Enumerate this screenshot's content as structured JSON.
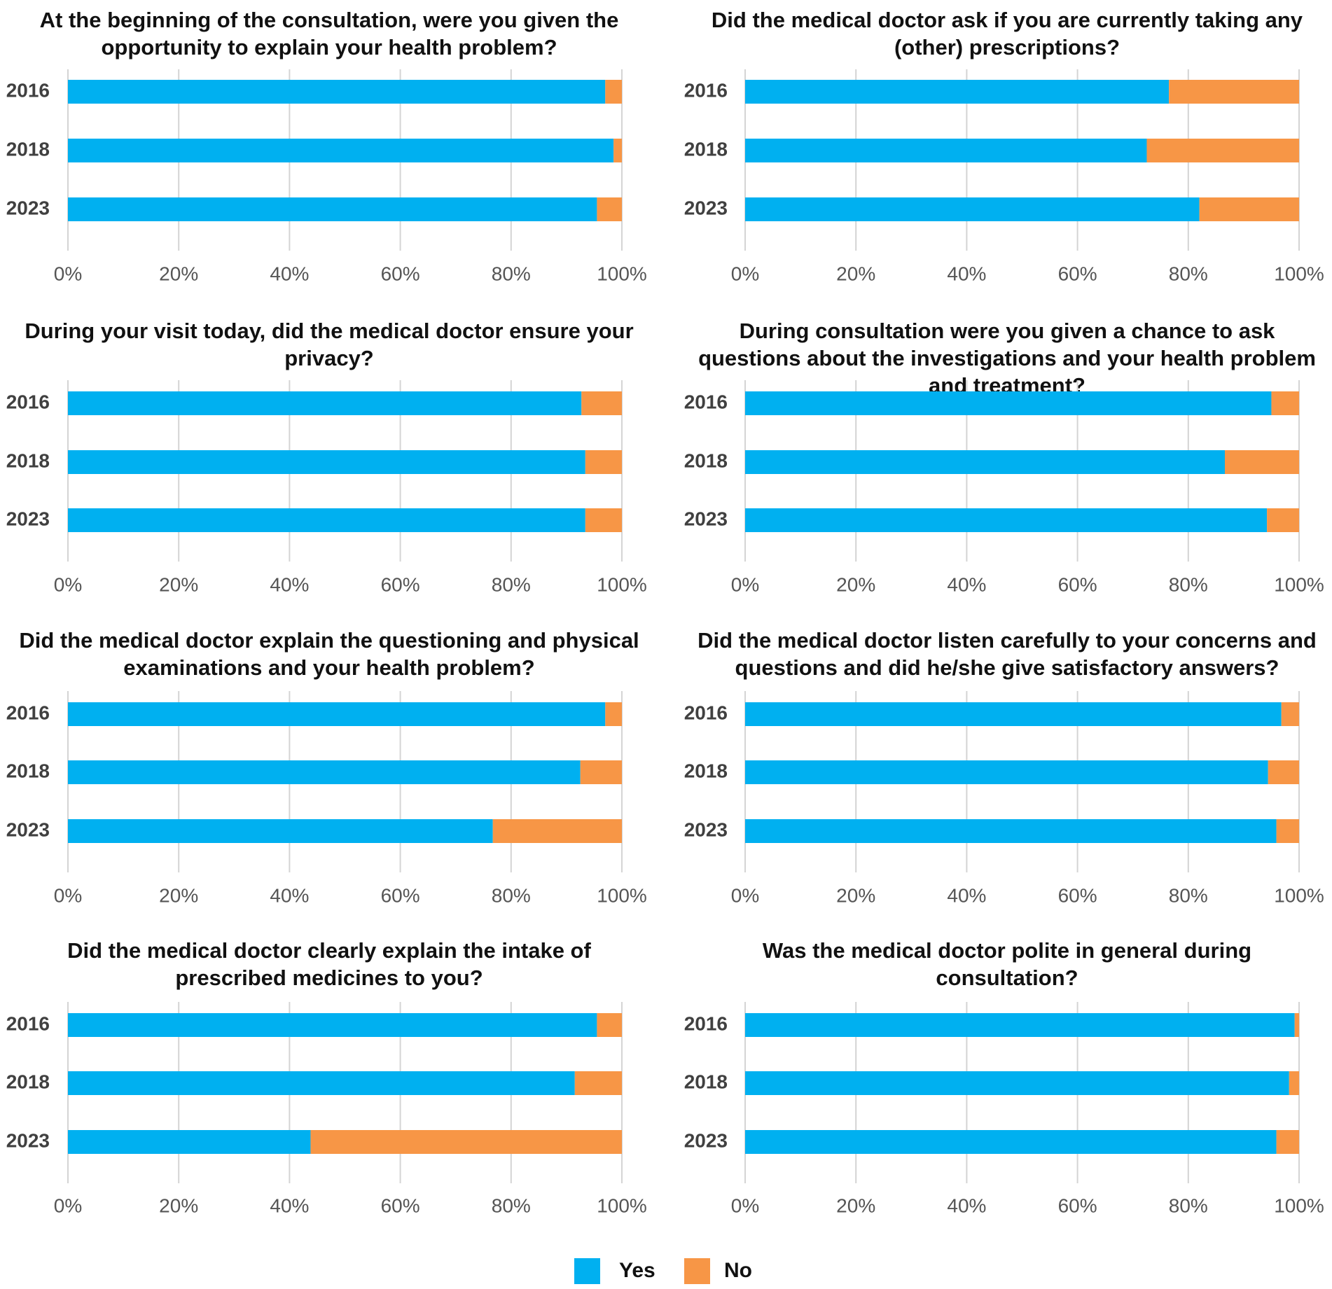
{
  "colors": {
    "yes": "#00b0f0",
    "no": "#f79646"
  },
  "legend": [
    {
      "key": "yes",
      "label": "Yes"
    },
    {
      "key": "no",
      "label": "No"
    }
  ],
  "chart_data": [
    {
      "type": "bar",
      "orientation": "horizontal",
      "stacked": true,
      "title_lines": [
        "At the beginning of the consultation, were you given the",
        "opportunity to explain your health problem?"
      ],
      "categories": [
        "2016",
        "2018",
        "2023"
      ],
      "series": [
        {
          "name": "Yes",
          "values": [
            97,
            98.5,
            95.5
          ]
        },
        {
          "name": "No",
          "values": [
            3,
            1.5,
            4.5
          ]
        }
      ],
      "x_ticks": [
        "0%",
        "20%",
        "40%",
        "60%",
        "80%",
        "100%"
      ],
      "xlim": [
        0,
        100
      ]
    },
    {
      "type": "bar",
      "orientation": "horizontal",
      "stacked": true,
      "title_lines": [
        "Did the medical doctor ask if you are currently taking any",
        "(other) prescriptions?"
      ],
      "categories": [
        "2016",
        "2018",
        "2023"
      ],
      "series": [
        {
          "name": "Yes",
          "values": [
            76.5,
            72.5,
            82
          ]
        },
        {
          "name": "No",
          "values": [
            23.5,
            27.5,
            18
          ]
        }
      ],
      "x_ticks": [
        "0%",
        "20%",
        "40%",
        "60%",
        "80%",
        "100%"
      ],
      "xlim": [
        0,
        100
      ]
    },
    {
      "type": "bar",
      "orientation": "horizontal",
      "stacked": true,
      "title_lines": [
        "During your visit today, did the medical doctor ensure your",
        "privacy?"
      ],
      "categories": [
        "2016",
        "2018",
        "2023"
      ],
      "series": [
        {
          "name": "Yes",
          "values": [
            92.7,
            93.4,
            93.4
          ]
        },
        {
          "name": "No",
          "values": [
            7.3,
            6.6,
            6.6
          ]
        }
      ],
      "x_ticks": [
        "0%",
        "20%",
        "40%",
        "60%",
        "80%",
        "100%"
      ],
      "xlim": [
        0,
        100
      ]
    },
    {
      "type": "bar",
      "orientation": "horizontal",
      "stacked": true,
      "title_lines": [
        "During consultation were you given a chance to ask",
        "questions about the investigations and your health problem",
        "and treatment?"
      ],
      "categories": [
        "2016",
        "2018",
        "2023"
      ],
      "series": [
        {
          "name": "Yes",
          "values": [
            95,
            86.6,
            94.2
          ]
        },
        {
          "name": "No",
          "values": [
            5,
            13.4,
            5.8
          ]
        }
      ],
      "x_ticks": [
        "0%",
        "20%",
        "40%",
        "60%",
        "80%",
        "100%"
      ],
      "xlim": [
        0,
        100
      ]
    },
    {
      "type": "bar",
      "orientation": "horizontal",
      "stacked": true,
      "title_lines": [
        "Did the medical doctor explain the questioning and physical",
        "examinations and your health problem?"
      ],
      "categories": [
        "2016",
        "2018",
        "2023"
      ],
      "series": [
        {
          "name": "Yes",
          "values": [
            97,
            92.5,
            76.7
          ]
        },
        {
          "name": "No",
          "values": [
            3,
            7.5,
            23.3
          ]
        }
      ],
      "x_ticks": [
        "0%",
        "20%",
        "40%",
        "60%",
        "80%",
        "100%"
      ],
      "xlim": [
        0,
        100
      ]
    },
    {
      "type": "bar",
      "orientation": "horizontal",
      "stacked": true,
      "title_lines": [
        "Did the medical doctor listen carefully to your concerns and",
        "questions and did he/she give satisfactory answers?"
      ],
      "categories": [
        "2016",
        "2018",
        "2023"
      ],
      "series": [
        {
          "name": "Yes",
          "values": [
            96.8,
            94.4,
            95.9
          ]
        },
        {
          "name": "No",
          "values": [
            3.2,
            5.6,
            4.1
          ]
        }
      ],
      "x_ticks": [
        "0%",
        "20%",
        "40%",
        "60%",
        "80%",
        "100%"
      ],
      "xlim": [
        0,
        100
      ]
    },
    {
      "type": "bar",
      "orientation": "horizontal",
      "stacked": true,
      "title_lines": [
        "Did the medical doctor clearly explain the intake of",
        "prescribed medicines to you?"
      ],
      "categories": [
        "2016",
        "2018",
        "2023"
      ],
      "series": [
        {
          "name": "Yes",
          "values": [
            95.5,
            91.5,
            43.8
          ]
        },
        {
          "name": "No",
          "values": [
            4.5,
            8.5,
            56.2
          ]
        }
      ],
      "x_ticks": [
        "0%",
        "20%",
        "40%",
        "60%",
        "80%",
        "100%"
      ],
      "xlim": [
        0,
        100
      ]
    },
    {
      "type": "bar",
      "orientation": "horizontal",
      "stacked": true,
      "title_lines": [
        "Was the medical doctor polite in general during",
        "consultation?"
      ],
      "categories": [
        "2016",
        "2018",
        "2023"
      ],
      "series": [
        {
          "name": "Yes",
          "values": [
            99.2,
            98.2,
            95.9
          ]
        },
        {
          "name": "No",
          "values": [
            0.8,
            1.8,
            4.1
          ]
        }
      ],
      "x_ticks": [
        "0%",
        "20%",
        "40%",
        "60%",
        "80%",
        "100%"
      ],
      "xlim": [
        0,
        100
      ]
    }
  ]
}
